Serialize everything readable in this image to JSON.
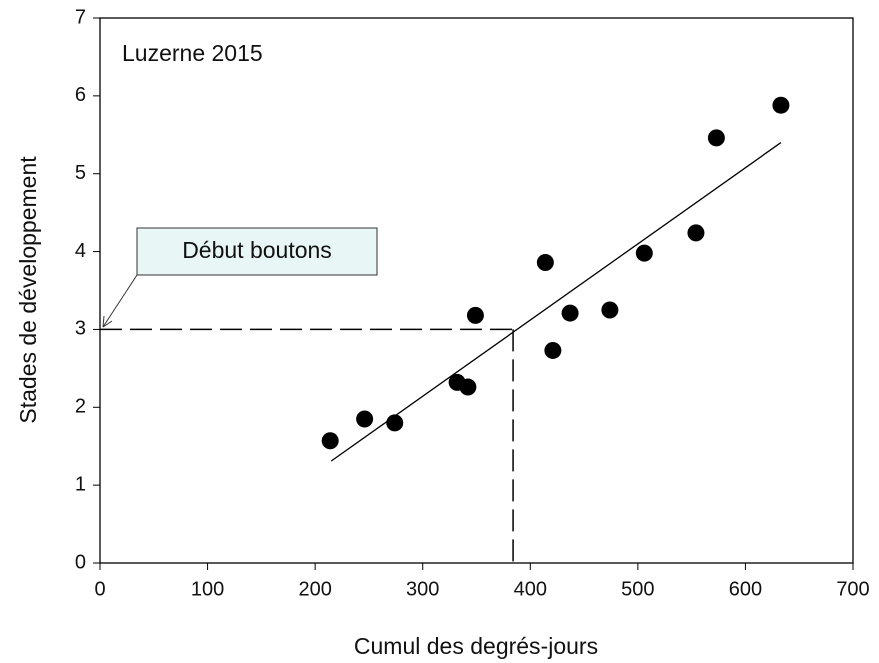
{
  "chart_data": {
    "type": "scatter",
    "xlabel": "Cumul des degrés-jours",
    "ylabel": "Stades de développement",
    "annotations": [
      "Luzerne 2015",
      "Début boutons"
    ],
    "series": [
      {
        "color": "#000000",
        "x": [
          214,
          246,
          274,
          332,
          342,
          349,
          414,
          421,
          437,
          474,
          506,
          554,
          573,
          633
        ],
        "y": [
          1.57,
          1.85,
          1.8,
          2.32,
          2.26,
          3.18,
          3.86,
          2.73,
          3.21,
          3.25,
          3.98,
          4.24,
          5.46,
          5.88
        ]
      }
    ],
    "fit": {
      "x": [
        215,
        633
      ],
      "y": [
        1.31,
        5.4
      ]
    },
    "reference": {
      "x": 384,
      "y": 3
    },
    "xlim": [
      0,
      700
    ],
    "ylim": [
      0,
      7
    ],
    "xticks": [
      0,
      100,
      200,
      300,
      400,
      500,
      600,
      700
    ],
    "yticks": [
      0,
      1,
      2,
      3,
      4,
      5,
      6,
      7
    ],
    "grid": false
  }
}
